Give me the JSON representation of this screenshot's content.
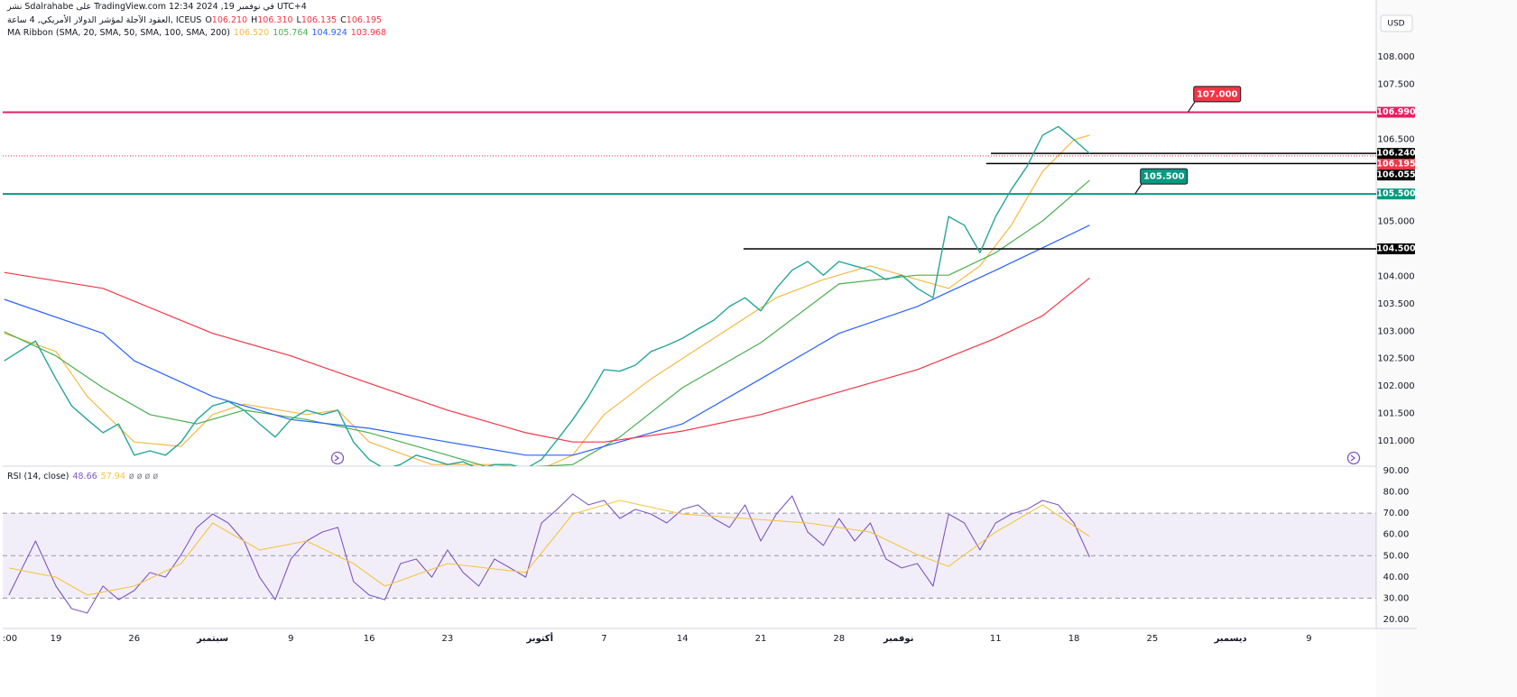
{
  "chart_data": [
    {
      "type": "line",
      "title": "نشر Sdalrahabe على TradingView.com في نوفمبر 19, 2024 12:34 UTC+4",
      "subtitle": "العقود الآجلة لمؤشر الدولار الأمريكي, 4 ساعة, ICEUS",
      "ohlc": [
        {
          "name": "O",
          "value": "106.210"
        },
        {
          "name": "H",
          "value": "106.310"
        },
        {
          "name": "L",
          "value": "106.135"
        },
        {
          "name": "C",
          "value": "106.195"
        }
      ],
      "ohlc_color": "#f23645",
      "currency": "USD",
      "xlim": [
        -3.4,
        84.3
      ],
      "ylim": [
        100.54,
        109.035
      ],
      "yticks": [
        {
          "value": 101,
          "label": "101.000"
        },
        {
          "value": 101.5,
          "label": "101.500"
        },
        {
          "value": 102,
          "label": "102.000"
        },
        {
          "value": 102.5,
          "label": "102.500"
        },
        {
          "value": 103,
          "label": "103.000"
        },
        {
          "value": 103.5,
          "label": "103.500"
        },
        {
          "value": 104,
          "label": "104.000"
        },
        {
          "value": 105,
          "label": "105.000"
        },
        {
          "value": 106.5,
          "label": "106.500"
        },
        {
          "value": 107.5,
          "label": "107.500"
        },
        {
          "value": 108,
          "label": "108.000"
        }
      ],
      "color": "#26a69a",
      "x": [
        -3.3,
        -1.3,
        0,
        1,
        2,
        3,
        4,
        5,
        6,
        7,
        8,
        9,
        10,
        11,
        12,
        13,
        14,
        15,
        16,
        17,
        18,
        19,
        20,
        21,
        22,
        23,
        24,
        25,
        26,
        27,
        28,
        29,
        30,
        31,
        32,
        33,
        34,
        35,
        36,
        37,
        38,
        39,
        40,
        41,
        42,
        43,
        44,
        45,
        46,
        47,
        48,
        49,
        50,
        51,
        52,
        53,
        54,
        55,
        56,
        57,
        58,
        59,
        60,
        61,
        62,
        63,
        64,
        65,
        66
      ],
      "values": [
        102.46,
        102.82,
        102.13,
        101.64,
        101.39,
        101.15,
        101.31,
        100.74,
        100.82,
        100.74,
        100.98,
        101.39,
        101.64,
        101.72,
        101.56,
        101.31,
        101.07,
        101.39,
        101.56,
        101.48,
        101.56,
        100.98,
        100.66,
        100.49,
        100.57,
        100.74,
        100.66,
        100.57,
        100.62,
        100.49,
        100.57,
        100.57,
        100.49,
        100.66,
        101.02,
        101.39,
        101.81,
        102.3,
        102.27,
        102.38,
        102.63,
        102.74,
        102.87,
        103.04,
        103.2,
        103.45,
        103.61,
        103.37,
        103.78,
        104.11,
        104.27,
        104.02,
        104.27,
        104.19,
        104.11,
        103.94,
        104.02,
        103.78,
        103.61,
        105.09,
        104.93,
        104.43,
        105.09,
        105.58,
        106.0,
        106.57,
        106.73,
        106.49,
        106.24
      ],
      "ma_ribbon": {
        "name": "MA Ribbon (SMA, 20, SMA, 50, SMA, 100, SMA, 200)",
        "series": [
          {
            "color": "#f5b942",
            "last": "106.520",
            "x": [
              -3.3,
              0,
              2,
              5,
              8,
              10,
              12,
              16,
              18,
              20,
              24,
              28,
              31,
              33,
              35,
              38,
              42,
              46,
              49,
              52,
              55,
              57,
              59,
              61,
              63,
              65,
              66
            ],
            "values": [
              102.96,
              102.63,
              101.81,
              100.98,
              100.9,
              101.48,
              101.67,
              101.48,
              101.56,
              100.98,
              100.57,
              100.57,
              100.49,
              100.74,
              101.48,
              102.13,
              102.87,
              103.61,
              103.94,
              104.19,
              103.94,
              103.78,
              104.19,
              104.93,
              105.91,
              106.49,
              106.57
            ]
          },
          {
            "color": "#4caf50",
            "last": "105.764",
            "x": [
              -3.3,
              0,
              3,
              6,
              9,
              12,
              16,
              20,
              25,
              28,
              33,
              36,
              40,
              45,
              50,
              55,
              57,
              60,
              63,
              66
            ],
            "values": [
              102.99,
              102.55,
              101.97,
              101.48,
              101.31,
              101.56,
              101.39,
              101.15,
              100.74,
              100.49,
              100.57,
              101.07,
              101.97,
              102.79,
              103.86,
              104.02,
              104.02,
              104.43,
              105.01,
              105.75
            ]
          },
          {
            "color": "#2962ff",
            "last": "104.924",
            "x": [
              -3.3,
              3,
              5,
              10,
              15,
              20,
              25,
              30,
              33,
              35,
              40,
              45,
              50,
              55,
              60,
              63,
              66
            ],
            "values": [
              103.58,
              102.96,
              102.46,
              101.81,
              101.39,
              101.23,
              100.98,
              100.74,
              100.74,
              100.9,
              101.31,
              102.13,
              102.96,
              103.45,
              104.11,
              104.52,
              104.93
            ]
          },
          {
            "color": "#f23645",
            "last": "103.968",
            "x": [
              -3.3,
              3,
              10,
              15,
              20,
              25,
              30,
              33,
              35,
              40,
              45,
              50,
              55,
              60,
              63,
              66
            ],
            "values": [
              104.07,
              103.78,
              102.96,
              102.55,
              102.05,
              101.56,
              101.15,
              100.98,
              100.98,
              101.18,
              101.48,
              101.89,
              102.3,
              102.87,
              103.28,
              103.97
            ]
          }
        ]
      },
      "levels": [
        {
          "value": 106.99,
          "label": "106.990",
          "color": "#e91e63",
          "x": -3.4
        },
        {
          "value": 105.5,
          "label": "105.500",
          "color": "#089981",
          "x": -3.4
        },
        {
          "value": 104.5,
          "label": "104.500",
          "color": "#000000",
          "x": 43.9
        },
        {
          "value": 106.24,
          "label": "106.240",
          "color": "#000000",
          "x": 59.7
        },
        {
          "value": 106.055,
          "label": "106.055",
          "color": "#000000",
          "x": 59.4
        }
      ],
      "last_price": {
        "value": 106.195,
        "label": "106.195",
        "color": "#f23645"
      },
      "callouts": [
        {
          "value": 107,
          "label": "107.000",
          "x": 72.3,
          "color": "#f23645"
        },
        {
          "value": 105.5,
          "label": "105.500",
          "x": 68.9,
          "color": "#089981"
        }
      ]
    },
    {
      "type": "line",
      "title": "RSI (14, close)",
      "placeholders": "ø ø ø ø",
      "xlim": [
        -3.4,
        84.3
      ],
      "ylim": [
        15.76,
        92.1
      ],
      "yticks": [
        {
          "value": 20,
          "label": "20.00"
        },
        {
          "value": 30,
          "label": "30.00"
        },
        {
          "value": 40,
          "label": "40.00"
        },
        {
          "value": 50,
          "label": "50.00"
        },
        {
          "value": 60,
          "label": "60.00"
        },
        {
          "value": 70,
          "label": "70.00"
        },
        {
          "value": 80,
          "label": "80.00"
        },
        {
          "value": 90,
          "label": "90.00"
        }
      ],
      "band": [
        30,
        70
      ],
      "hlines": [
        70,
        50,
        30
      ],
      "xticks": [
        {
          "value": -3.4,
          "label": ":00"
        },
        {
          "value": 0,
          "label": "19"
        },
        {
          "value": 5,
          "label": "26"
        },
        {
          "value": 10,
          "label": "سبتمبر"
        },
        {
          "value": 15,
          "label": "9"
        },
        {
          "value": 20,
          "label": "16"
        },
        {
          "value": 25,
          "label": "23"
        },
        {
          "value": 30.9,
          "label": "أكتوبر"
        },
        {
          "value": 35,
          "label": "7"
        },
        {
          "value": 40,
          "label": "14"
        },
        {
          "value": 45,
          "label": "21"
        },
        {
          "value": 50,
          "label": "28"
        },
        {
          "value": 53.8,
          "label": "نوفمبر"
        },
        {
          "value": 60,
          "label": "11"
        },
        {
          "value": 65,
          "label": "18"
        },
        {
          "value": 70,
          "label": "25"
        },
        {
          "value": 75,
          "label": "ديسمبر"
        },
        {
          "value": 80,
          "label": "9"
        }
      ],
      "series": [
        {
          "color": "#7e57c2",
          "last": "48.66",
          "x": [
            -3,
            -1.3,
            0,
            1,
            2,
            3,
            4,
            5,
            6,
            7,
            8,
            9,
            10,
            11,
            12,
            13,
            14,
            15,
            16,
            17,
            18,
            19,
            20,
            21,
            22,
            23,
            24,
            25,
            26,
            27,
            28,
            29,
            30,
            31,
            32,
            33,
            34,
            35,
            36,
            37,
            38,
            39,
            40,
            41,
            42,
            43,
            44,
            45,
            46,
            47,
            48,
            49,
            50,
            51,
            52,
            53,
            54,
            55,
            56,
            57,
            58,
            59,
            60,
            61,
            62,
            63,
            64,
            65,
            66
          ],
          "values": [
            31.5,
            56.9,
            35.7,
            25.1,
            23.0,
            35.7,
            29.3,
            33.6,
            42.1,
            39.9,
            50.5,
            63.3,
            69.6,
            65.4,
            56.9,
            39.9,
            29.3,
            48.4,
            56.9,
            61.1,
            63.3,
            37.8,
            31.5,
            29.3,
            46.3,
            48.4,
            39.9,
            52.7,
            42.1,
            35.7,
            48.4,
            44.2,
            39.9,
            65.4,
            71.8,
            79.0,
            73.9,
            76.0,
            67.5,
            71.8,
            69.6,
            65.4,
            71.8,
            73.9,
            67.5,
            63.3,
            73.9,
            56.9,
            69.6,
            78.1,
            61.1,
            54.8,
            67.5,
            56.9,
            65.4,
            48.4,
            44.2,
            46.3,
            35.7,
            69.6,
            65.4,
            52.7,
            65.4,
            69.6,
            71.8,
            76.0,
            73.9,
            65.4,
            49.3
          ]
        },
        {
          "color": "#f5c542",
          "last": "57.94",
          "x": [
            -3,
            0,
            2,
            5,
            8,
            10,
            13,
            16,
            19,
            21,
            25,
            30,
            33,
            36,
            40,
            44,
            48,
            52,
            55,
            57,
            60,
            63,
            66
          ],
          "values": [
            44.2,
            39.9,
            31.5,
            35.7,
            46.3,
            65.4,
            52.7,
            56.9,
            46.3,
            35.7,
            46.3,
            42.1,
            69.6,
            76.0,
            69.6,
            67.5,
            65.4,
            61.1,
            50.5,
            45.0,
            61.1,
            73.9,
            59.0
          ]
        }
      ]
    }
  ]
}
